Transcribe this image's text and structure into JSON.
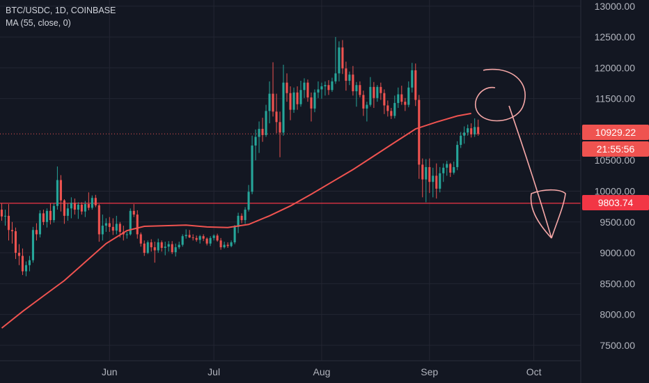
{
  "legend": {
    "symbol": "BTC/USDC, 1D, COINBASE",
    "indicator": "MA (55, close, 0)"
  },
  "colors": {
    "background": "#131722",
    "up": "#26a69a",
    "down": "#ef5350",
    "ma": "#f05350",
    "level": "#f23645",
    "drawing": "#f7a8a8",
    "grid": "#232632",
    "axis_text": "#b2b5be"
  },
  "tags": {
    "last_price": "10929.22",
    "countdown": "21:55:56",
    "level": "9803.74"
  },
  "chart_data": {
    "type": "candlestick",
    "symbol": "BTC/USDC",
    "timeframe": "1D",
    "exchange": "COINBASE",
    "y_ticks": [
      "13000.00",
      "12500.00",
      "12000.00",
      "11500.00",
      "10500.00",
      "10000.00",
      "9500.00",
      "9000.00",
      "8500.00",
      "8000.00",
      "7500.00"
    ],
    "x_ticks": [
      "Jun",
      "Jul",
      "Aug",
      "Sep",
      "Oct"
    ],
    "ylim": [
      7250,
      13100
    ],
    "x_tick_days": [
      31,
      61,
      92,
      123,
      153
    ],
    "xlim": [
      -0.5,
      166.5
    ],
    "horizontal_level": 9803.74,
    "last_price": 10929.22,
    "grid": true,
    "ohlc": [
      [
        9700,
        9800,
        9520,
        9590
      ],
      [
        9590,
        9700,
        9440,
        9600
      ],
      [
        9600,
        9790,
        9200,
        9370
      ],
      [
        9370,
        9500,
        9150,
        9350
      ],
      [
        9350,
        9410,
        8900,
        9000
      ],
      [
        9000,
        9140,
        8800,
        8950
      ],
      [
        8950,
        9070,
        8640,
        8700
      ],
      [
        8700,
        8860,
        8620,
        8800
      ],
      [
        8800,
        8950,
        8700,
        8880
      ],
      [
        8880,
        9420,
        8840,
        9370
      ],
      [
        9370,
        9480,
        9200,
        9300
      ],
      [
        9300,
        9690,
        9250,
        9640
      ],
      [
        9640,
        9700,
        9450,
        9500
      ],
      [
        9500,
        9720,
        9410,
        9680
      ],
      [
        9680,
        9800,
        9460,
        9530
      ],
      [
        9530,
        9800,
        9490,
        9760
      ],
      [
        9760,
        10400,
        9700,
        10180
      ],
      [
        10180,
        10260,
        9670,
        9850
      ],
      [
        9850,
        9870,
        9470,
        9600
      ],
      [
        9600,
        9800,
        9520,
        9720
      ],
      [
        9720,
        9900,
        9560,
        9810
      ],
      [
        9810,
        9880,
        9620,
        9700
      ],
      [
        9700,
        9820,
        9550,
        9780
      ],
      [
        9780,
        9820,
        9620,
        9670
      ],
      [
        9670,
        9840,
        9580,
        9790
      ],
      [
        9790,
        9980,
        9690,
        9730
      ],
      [
        9730,
        9930,
        9700,
        9890
      ],
      [
        9890,
        9940,
        9740,
        9770
      ],
      [
        9770,
        9790,
        9180,
        9300
      ],
      [
        9300,
        9620,
        9200,
        9440
      ],
      [
        9440,
        9560,
        9340,
        9480
      ],
      [
        9480,
        9580,
        9340,
        9420
      ],
      [
        9420,
        9560,
        9290,
        9360
      ],
      [
        9360,
        9600,
        9300,
        9470
      ],
      [
        9470,
        9500,
        9250,
        9340
      ],
      [
        9340,
        9440,
        9200,
        9300
      ],
      [
        9300,
        9340,
        9230,
        9300
      ],
      [
        9300,
        9720,
        9280,
        9680
      ],
      [
        9680,
        9790,
        9580,
        9620
      ],
      [
        9620,
        9690,
        9230,
        9300
      ],
      [
        9300,
        9330,
        9100,
        9150
      ],
      [
        9150,
        9200,
        8950,
        9000
      ],
      [
        9000,
        9200,
        8980,
        9170
      ],
      [
        9170,
        9220,
        9020,
        9090
      ],
      [
        9090,
        9180,
        8840,
        9040
      ],
      [
        9040,
        9230,
        9000,
        9170
      ],
      [
        9170,
        9200,
        9020,
        9080
      ],
      [
        9080,
        9180,
        8960,
        9100
      ],
      [
        9100,
        9190,
        9020,
        9140
      ],
      [
        9140,
        9190,
        8980,
        9010
      ],
      [
        9010,
        9150,
        8940,
        9090
      ],
      [
        9090,
        9180,
        9060,
        9130
      ],
      [
        9130,
        9300,
        9100,
        9270
      ],
      [
        9270,
        9380,
        9230,
        9290
      ],
      [
        9290,
        9370,
        9240,
        9250
      ],
      [
        9250,
        9300,
        9200,
        9240
      ],
      [
        9240,
        9280,
        9180,
        9210
      ],
      [
        9210,
        9290,
        9150,
        9270
      ],
      [
        9270,
        9300,
        9190,
        9230
      ],
      [
        9230,
        9250,
        9120,
        9150
      ],
      [
        9150,
        9270,
        9110,
        9240
      ],
      [
        9240,
        9300,
        9200,
        9280
      ],
      [
        9280,
        9310,
        9180,
        9200
      ],
      [
        9200,
        9240,
        9050,
        9090
      ],
      [
        9090,
        9180,
        9070,
        9130
      ],
      [
        9130,
        9170,
        9080,
        9110
      ],
      [
        9110,
        9200,
        9090,
        9170
      ],
      [
        9170,
        9450,
        9140,
        9420
      ],
      [
        9420,
        9650,
        9320,
        9600
      ],
      [
        9600,
        9640,
        9480,
        9530
      ],
      [
        9530,
        9740,
        9470,
        9700
      ],
      [
        9700,
        10100,
        9670,
        9990
      ],
      [
        9990,
        10900,
        9950,
        10740
      ],
      [
        10740,
        11000,
        10500,
        10880
      ],
      [
        10880,
        11130,
        10620,
        11010
      ],
      [
        11010,
        11190,
        10800,
        10910
      ],
      [
        10910,
        11400,
        10880,
        11300
      ],
      [
        11300,
        11780,
        11100,
        11580
      ],
      [
        11580,
        12090,
        11210,
        11290
      ],
      [
        11290,
        11580,
        10940,
        11120
      ],
      [
        11120,
        11290,
        10550,
        10950
      ],
      [
        10950,
        12050,
        10900,
        11760
      ],
      [
        11760,
        11910,
        11450,
        11590
      ],
      [
        11590,
        11700,
        11150,
        11320
      ],
      [
        11320,
        11680,
        11270,
        11600
      ],
      [
        11600,
        11700,
        11320,
        11410
      ],
      [
        11410,
        11790,
        11370,
        11640
      ],
      [
        11640,
        11830,
        11510,
        11760
      ],
      [
        11760,
        11810,
        11450,
        11520
      ],
      [
        11520,
        11600,
        11130,
        11340
      ],
      [
        11340,
        11650,
        11280,
        11600
      ],
      [
        11600,
        11780,
        11510,
        11650
      ],
      [
        11650,
        11760,
        11500,
        11700
      ],
      [
        11700,
        11780,
        11550,
        11720
      ],
      [
        11720,
        11800,
        11560,
        11640
      ],
      [
        11640,
        11840,
        11610,
        11780
      ],
      [
        11780,
        12500,
        11740,
        11910
      ],
      [
        11910,
        12430,
        11780,
        12330
      ],
      [
        12330,
        12450,
        11900,
        11990
      ],
      [
        11990,
        12100,
        11630,
        11790
      ],
      [
        11790,
        11940,
        11720,
        11890
      ],
      [
        11890,
        12030,
        11550,
        11620
      ],
      [
        11620,
        11770,
        11370,
        11720
      ],
      [
        11720,
        11780,
        11520,
        11560
      ],
      [
        11560,
        11630,
        11220,
        11340
      ],
      [
        11340,
        11450,
        11130,
        11400
      ],
      [
        11400,
        11850,
        11370,
        11690
      ],
      [
        11690,
        11770,
        11350,
        11510
      ],
      [
        11510,
        11720,
        11450,
        11690
      ],
      [
        11690,
        11760,
        11480,
        11590
      ],
      [
        11590,
        11650,
        11250,
        11390
      ],
      [
        11390,
        11470,
        11210,
        11300
      ],
      [
        11300,
        11350,
        11170,
        11220
      ],
      [
        11220,
        11550,
        11180,
        11430
      ],
      [
        11430,
        11680,
        11350,
        11570
      ],
      [
        11570,
        11710,
        11400,
        11450
      ],
      [
        11450,
        11510,
        11300,
        11400
      ],
      [
        11400,
        11780,
        11360,
        11680
      ],
      [
        11680,
        12080,
        11600,
        11960
      ],
      [
        11960,
        12070,
        11380,
        11480
      ],
      [
        11480,
        11560,
        10200,
        10430
      ],
      [
        10430,
        10530,
        9900,
        10190
      ],
      [
        10190,
        10520,
        9820,
        10390
      ],
      [
        10390,
        10530,
        9970,
        10150
      ],
      [
        10150,
        10380,
        9900,
        10250
      ],
      [
        10250,
        10450,
        9880,
        10040
      ],
      [
        10040,
        10390,
        9980,
        10290
      ],
      [
        10290,
        10450,
        10150,
        10380
      ],
      [
        10380,
        10490,
        10250,
        10440
      ],
      [
        10440,
        10460,
        10230,
        10300
      ],
      [
        10300,
        10480,
        10270,
        10390
      ],
      [
        10390,
        10810,
        10340,
        10750
      ],
      [
        10750,
        10960,
        10700,
        10900
      ],
      [
        10900,
        11050,
        10770,
        10950
      ],
      [
        10950,
        11080,
        10900,
        11020
      ],
      [
        11020,
        11100,
        10870,
        10920
      ],
      [
        10920,
        11180,
        10880,
        11040
      ],
      [
        11040,
        11160,
        10900,
        10929.22
      ]
    ],
    "ma55": [
      [
        0,
        7780
      ],
      [
        6,
        8050
      ],
      [
        12,
        8300
      ],
      [
        18,
        8550
      ],
      [
        24,
        8850
      ],
      [
        30,
        9150
      ],
      [
        36,
        9360
      ],
      [
        41,
        9430
      ],
      [
        47,
        9440
      ],
      [
        53,
        9450
      ],
      [
        59,
        9420
      ],
      [
        65,
        9410
      ],
      [
        71,
        9460
      ],
      [
        77,
        9600
      ],
      [
        83,
        9760
      ],
      [
        89,
        9950
      ],
      [
        95,
        10150
      ],
      [
        101,
        10350
      ],
      [
        107,
        10570
      ],
      [
        113,
        10790
      ],
      [
        119,
        11010
      ],
      [
        125,
        11120
      ],
      [
        131,
        11220
      ],
      [
        135,
        11260
      ]
    ]
  }
}
